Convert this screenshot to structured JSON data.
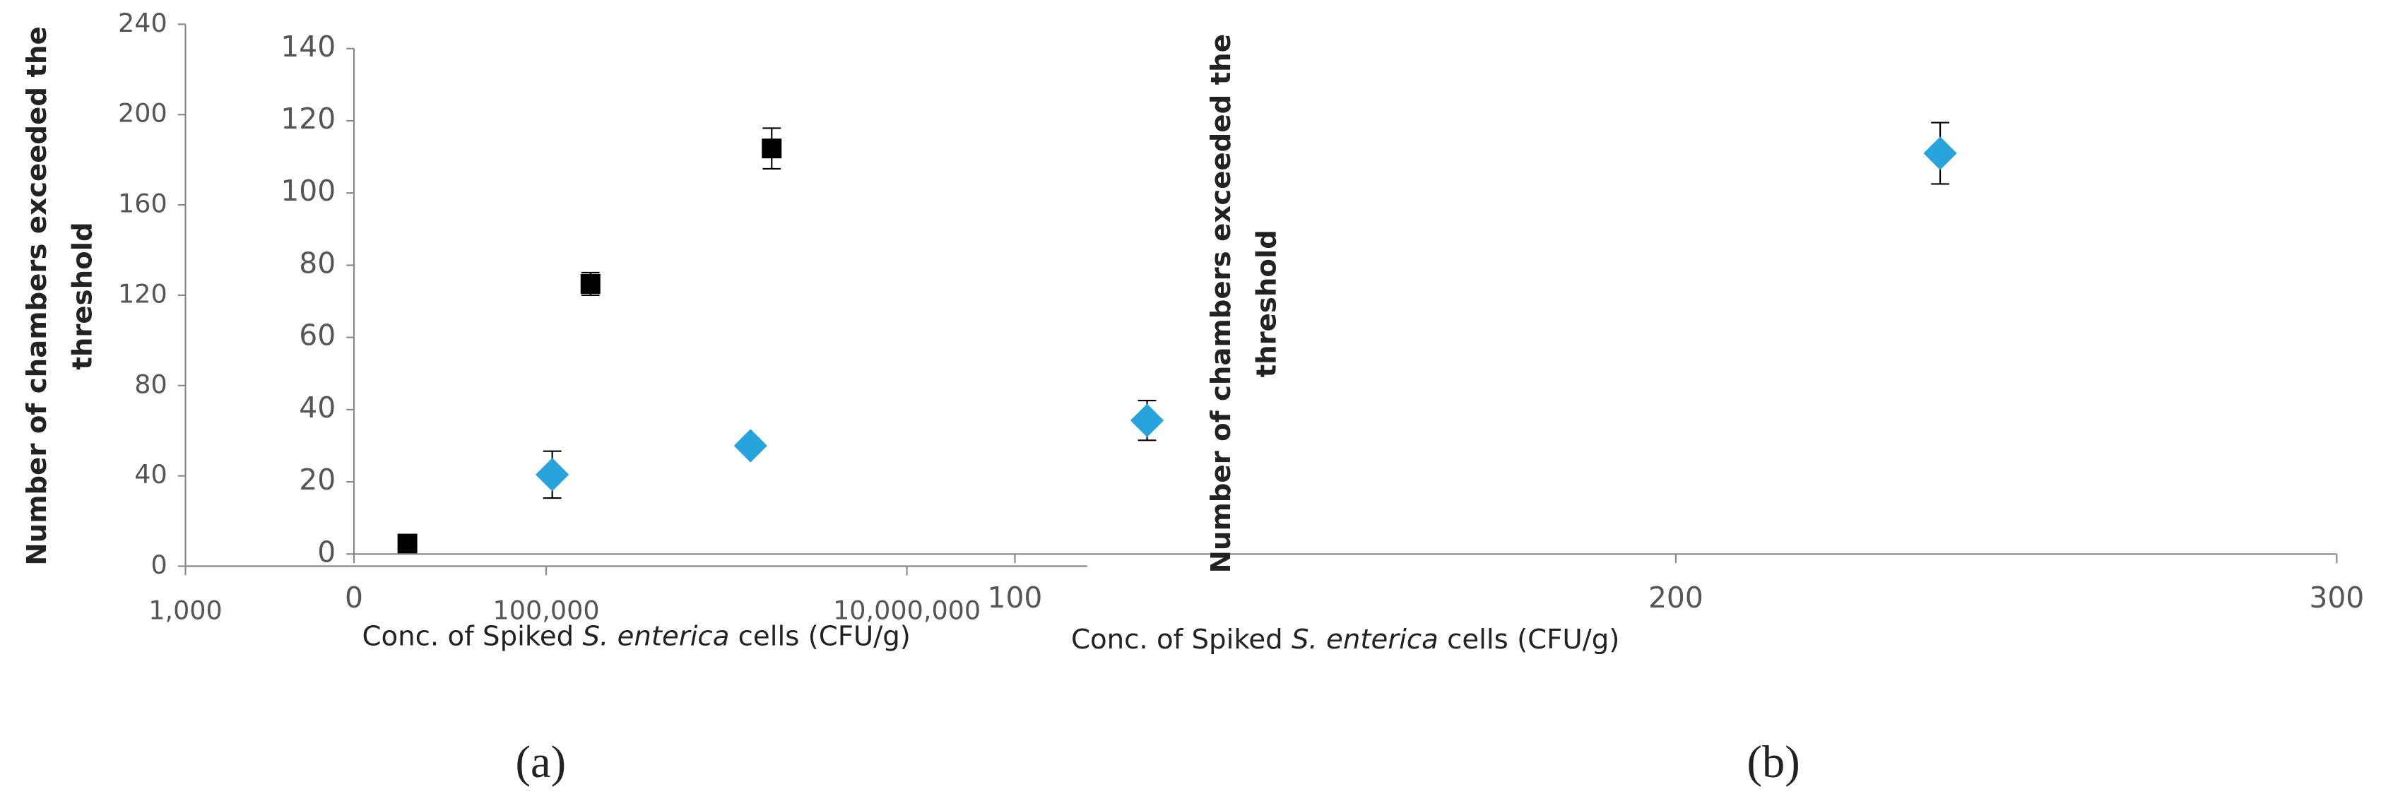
{
  "chart_data": [
    {
      "type": "scatter",
      "panel_label": "(a)",
      "ylabel": [
        "Number of chambers exceeded the",
        "threshold"
      ],
      "xlabel": {
        "before": "Conc. of Spiked ",
        "italic": "S. enterica",
        "after": " cells (CFU/g)"
      },
      "xscale": "log",
      "marker": "square",
      "color": "#000000",
      "xlim": [
        1000,
        100000000
      ],
      "xticks": [
        {
          "value": 1000,
          "label": "1,000"
        },
        {
          "value": 100000,
          "label": "100,000"
        },
        {
          "value": 10000000,
          "label": "10,000,000"
        }
      ],
      "ylim": [
        0,
        240
      ],
      "yticks": [
        0,
        40,
        80,
        120,
        160,
        200,
        240
      ],
      "x": [
        17000,
        176000,
        1780000
      ],
      "values": [
        10,
        125,
        185
      ],
      "errors": [
        2,
        5,
        9
      ]
    },
    {
      "type": "scatter",
      "panel_label": "(b)",
      "ylabel": [
        "Number of chambers exceeded the",
        "threshold"
      ],
      "xlabel": {
        "before": "Conc. of  Spiked ",
        "italic": "S. enterica",
        "after": " cells (CFU/g)"
      },
      "xscale": "linear",
      "marker": "diamond",
      "color": "#29a3dc",
      "xlim": [
        0,
        300
      ],
      "xticks": [
        0,
        100,
        200,
        300
      ],
      "ylim": [
        0,
        140
      ],
      "yticks": [
        0,
        20,
        40,
        60,
        80,
        100,
        120,
        140
      ],
      "x": [
        30,
        60,
        120,
        240
      ],
      "values": [
        22,
        30,
        37,
        111
      ],
      "errors": [
        6.5,
        2,
        5.5,
        8.5
      ]
    }
  ]
}
